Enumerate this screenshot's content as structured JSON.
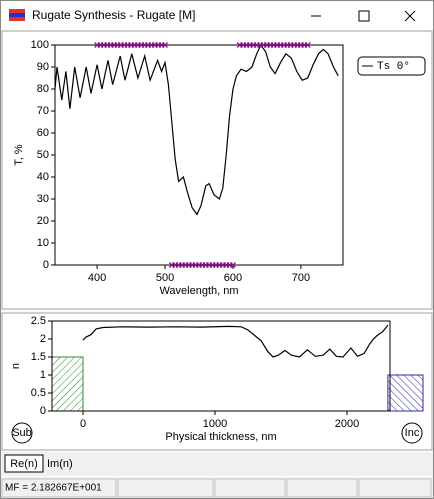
{
  "window_title": "Rugate Synthesis - Rugate [M]",
  "chart_data": [
    {
      "type": "line",
      "ylabel": "T, %",
      "xlabel": "Wavelength, nm",
      "xlim": [
        338,
        762
      ],
      "xticks": [
        400,
        500,
        600,
        700
      ],
      "ylim": [
        0,
        100
      ],
      "yticks": [
        0,
        10,
        20,
        30,
        40,
        50,
        60,
        70,
        80,
        90,
        100
      ],
      "legend": "top-right",
      "series": [
        {
          "name": "Ts 0°",
          "type": "line",
          "color": "#000000",
          "x": [
            338,
            341,
            348,
            354,
            360,
            367,
            375,
            384,
            391,
            400,
            407,
            416,
            423,
            434,
            441,
            451,
            460,
            470,
            478,
            489,
            495,
            500,
            505,
            510,
            515,
            520,
            527,
            533,
            540,
            547,
            553,
            560,
            565,
            572,
            580,
            585,
            590,
            595,
            600,
            605,
            612,
            620,
            628,
            635,
            641,
            648,
            655,
            662,
            670,
            678,
            686,
            694,
            702,
            710,
            718,
            726,
            733,
            740,
            748,
            755
          ],
          "values": [
            80,
            90,
            75,
            88,
            71,
            90,
            76,
            90,
            78,
            91,
            80,
            93,
            82,
            95,
            84,
            96,
            85,
            95,
            84,
            93,
            88,
            92,
            82,
            65,
            48,
            38,
            40,
            33,
            26,
            23,
            27,
            36,
            37,
            32,
            30,
            35,
            50,
            68,
            80,
            86,
            89,
            88,
            90,
            96,
            100,
            97,
            90,
            87,
            92,
            96,
            94,
            88,
            84,
            85,
            91,
            96,
            98,
            96,
            90,
            86
          ]
        },
        {
          "type": "scatter",
          "marker": "x",
          "color": "#8b1a8b",
          "x": [
            400,
            405,
            410,
            415,
            420,
            425,
            430,
            435,
            440,
            445,
            450,
            455,
            460,
            465,
            470,
            475,
            480,
            485,
            490,
            495,
            500,
            510,
            515,
            520,
            525,
            530,
            535,
            540,
            545,
            550,
            555,
            560,
            565,
            570,
            575,
            580,
            585,
            590,
            595,
            600,
            610,
            615,
            620,
            625,
            630,
            635,
            640,
            645,
            650,
            655,
            660,
            665,
            670,
            675,
            680,
            685,
            690,
            695,
            700,
            705,
            710
          ],
          "values": [
            100,
            100,
            100,
            100,
            100,
            100,
            100,
            100,
            100,
            100,
            100,
            100,
            100,
            100,
            100,
            100,
            100,
            100,
            100,
            100,
            100,
            0,
            0,
            0,
            0,
            0,
            0,
            0,
            0,
            0,
            0,
            0,
            0,
            0,
            0,
            0,
            0,
            0,
            0,
            0,
            100,
            100,
            100,
            100,
            100,
            100,
            100,
            100,
            100,
            100,
            100,
            100,
            100,
            100,
            100,
            100,
            100,
            100,
            100,
            100,
            100
          ]
        }
      ]
    },
    {
      "type": "line",
      "ylabel": "n",
      "xlabel": "Physical thickness, nm",
      "xlim": [
        -235,
        2326
      ],
      "xticks": [
        0,
        1000,
        2000
      ],
      "ylim": [
        0,
        2.5
      ],
      "yticks": [
        0,
        0.5,
        1,
        1.5,
        2,
        2.5
      ],
      "substrate": {
        "label": "Sub",
        "n": 1.5,
        "color": "#2e8b2e"
      },
      "incident": {
        "label": "Inc",
        "n": 1,
        "color": "#2a2aa0"
      },
      "series": [
        {
          "type": "line",
          "color": "#000000",
          "x": [
            0,
            20,
            60,
            100,
            150,
            300,
            500,
            700,
            900,
            1100,
            1200,
            1250,
            1300,
            1350,
            1400,
            1440,
            1480,
            1530,
            1580,
            1640,
            1700,
            1760,
            1820,
            1870,
            1920,
            1970,
            2030,
            2080,
            2130,
            2170,
            2200,
            2230,
            2270,
            2310
          ],
          "values": [
            1.97,
            2.05,
            2.12,
            2.28,
            2.32,
            2.34,
            2.33,
            2.34,
            2.33,
            2.35,
            2.34,
            2.25,
            2.1,
            1.95,
            1.65,
            1.5,
            1.55,
            1.68,
            1.55,
            1.5,
            1.7,
            1.52,
            1.55,
            1.72,
            1.52,
            1.5,
            1.75,
            1.52,
            1.6,
            1.85,
            2.0,
            2.1,
            2.2,
            2.38
          ]
        }
      ]
    }
  ],
  "tabs": [
    "Re(n)",
    "Im(n)"
  ],
  "status": [
    "MF = 2.182667E+001"
  ]
}
